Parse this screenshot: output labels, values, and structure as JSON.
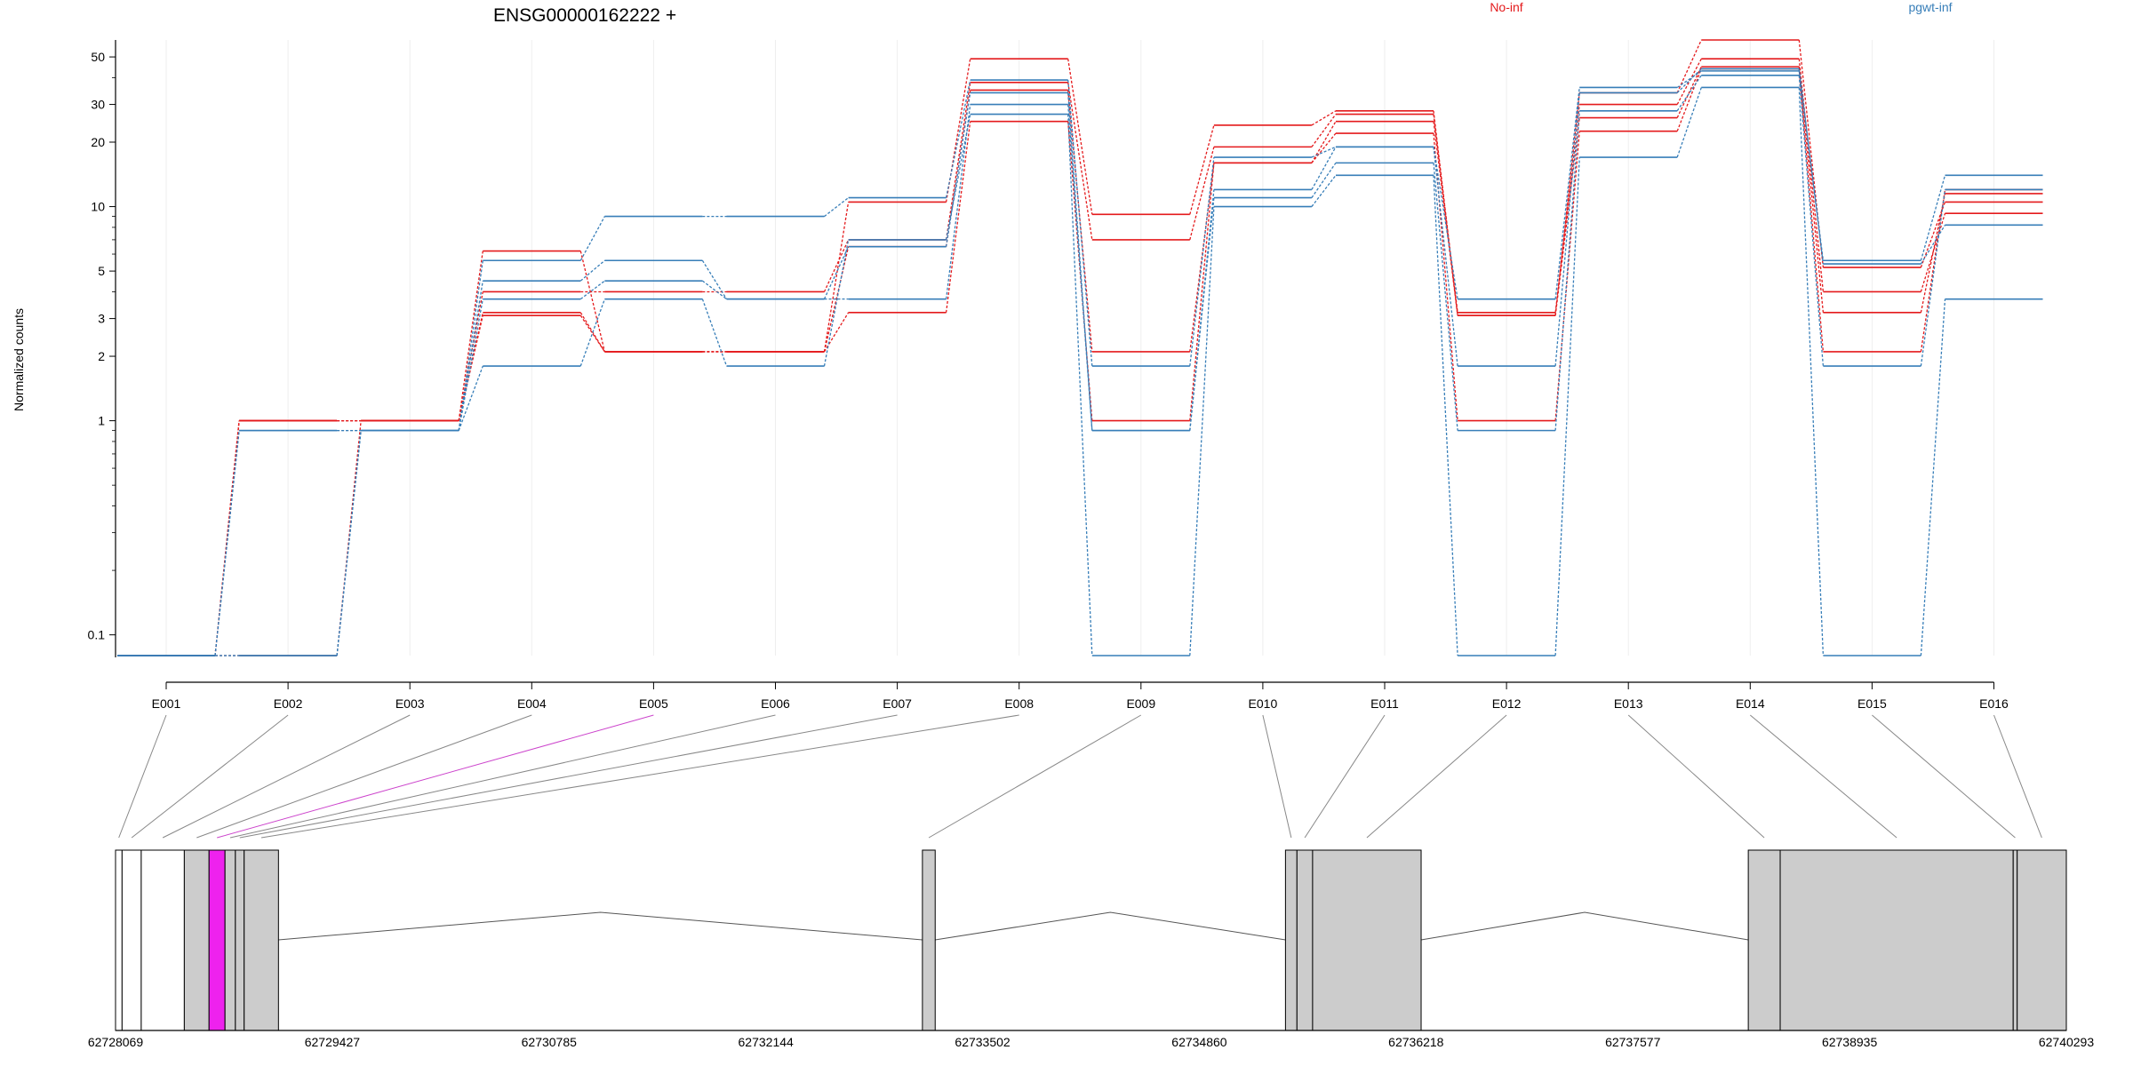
{
  "chart_data": {
    "type": "line",
    "title": "ENSG00000162222 +",
    "ylabel": "Normalized counts",
    "xlabel": "",
    "yscale": "log",
    "ylim": [
      0.08,
      60
    ],
    "grid": "vertical-light",
    "yticks": [
      {
        "value": 0.1,
        "label": "0.1"
      },
      {
        "value": 1,
        "label": "1"
      },
      {
        "value": 2,
        "label": "2"
      },
      {
        "value": 3,
        "label": "3"
      },
      {
        "value": 5,
        "label": "5"
      },
      {
        "value": 10,
        "label": "10"
      },
      {
        "value": 20,
        "label": "20"
      },
      {
        "value": 30,
        "label": "30"
      },
      {
        "value": 50,
        "label": "50"
      }
    ],
    "categories": [
      "E001",
      "E002",
      "E003",
      "E004",
      "E005",
      "E006",
      "E007",
      "E008",
      "E009",
      "E010",
      "E011",
      "E012",
      "E013",
      "E014",
      "E015",
      "E016"
    ],
    "highlight_exon": "E005",
    "legend": [
      {
        "name": "No-inf",
        "color": "#e41a1c"
      },
      {
        "name": "pgwt-inf",
        "color": "#377eb8"
      }
    ],
    "series": [
      {
        "group": "No-inf",
        "color": "#e41a1c",
        "values": [
          0.08,
          1.0,
          1.0,
          6.2,
          2.1,
          2.1,
          10.5,
          49,
          9.2,
          24,
          28,
          3.1,
          34,
          60,
          5.2,
          10.5
        ]
      },
      {
        "group": "No-inf",
        "color": "#e41a1c",
        "values": [
          0.08,
          1.0,
          1.0,
          4.0,
          4.0,
          4.0,
          7.0,
          38,
          7.0,
          19,
          27,
          3.2,
          30,
          49,
          4.0,
          9.3
        ]
      },
      {
        "group": "No-inf",
        "color": "#e41a1c",
        "values": [
          0.08,
          1.0,
          1.0,
          3.2,
          2.1,
          2.1,
          6.5,
          35,
          2.1,
          16,
          25,
          3.1,
          26,
          45,
          3.2,
          11.5
        ]
      },
      {
        "group": "No-inf",
        "color": "#e41a1c",
        "values": [
          0.08,
          0.08,
          1.0,
          3.1,
          2.1,
          2.1,
          3.2,
          25,
          1.0,
          16,
          22,
          1.0,
          22.5,
          44,
          2.1,
          12
        ]
      },
      {
        "group": "pgwt-inf",
        "color": "#377eb8",
        "values": [
          0.08,
          0.9,
          0.9,
          5.6,
          9.0,
          9.0,
          11,
          39,
          1.8,
          17,
          19,
          3.7,
          36,
          43,
          5.6,
          14
        ]
      },
      {
        "group": "pgwt-inf",
        "color": "#377eb8",
        "values": [
          0.08,
          0.08,
          0.9,
          4.5,
          5.6,
          3.7,
          6.5,
          34,
          0.9,
          12,
          19,
          1.8,
          34,
          44,
          5.4,
          8.2
        ]
      },
      {
        "group": "pgwt-inf",
        "color": "#377eb8",
        "values": [
          0.08,
          0.08,
          0.9,
          3.7,
          4.5,
          3.7,
          3.7,
          30,
          0.9,
          11,
          16,
          0.9,
          28,
          41,
          1.8,
          12
        ]
      },
      {
        "group": "pgwt-inf",
        "color": "#377eb8",
        "values": [
          0.08,
          0.9,
          0.9,
          1.8,
          3.7,
          1.8,
          7.0,
          27,
          0.08,
          10,
          14,
          0.08,
          17,
          36,
          0.08,
          3.7
        ]
      }
    ],
    "gene_model": {
      "axis_ticks": [
        "62728069",
        "62729427",
        "62730785",
        "62732144",
        "62733502",
        "62734860",
        "62736218",
        "62737577",
        "62738935",
        "62740293"
      ],
      "range": [
        62728069,
        62740293
      ],
      "exons": [
        {
          "id": "E001",
          "start": 62728069,
          "end": 62728110,
          "fill": "#ffffff"
        },
        {
          "id": "E002",
          "start": 62728110,
          "end": 62728230,
          "fill": "#ffffff"
        },
        {
          "id": "E003",
          "start": 62728230,
          "end": 62728500,
          "fill": "#ffffff"
        },
        {
          "id": "E004",
          "start": 62728500,
          "end": 62728655,
          "fill": "#cccccc"
        },
        {
          "id": "E005",
          "start": 62728655,
          "end": 62728755,
          "fill": "#ee22ee"
        },
        {
          "id": "E006",
          "start": 62728755,
          "end": 62728820,
          "fill": "#cccccc"
        },
        {
          "id": "E007",
          "start": 62728820,
          "end": 62728875,
          "fill": "#cccccc"
        },
        {
          "id": "E008",
          "start": 62728875,
          "end": 62729090,
          "fill": "#cccccc"
        },
        {
          "id": "E009",
          "start": 62733125,
          "end": 62733205,
          "fill": "#cccccc"
        },
        {
          "id": "E010",
          "start": 62735400,
          "end": 62735472,
          "fill": "#cccccc"
        },
        {
          "id": "E011",
          "start": 62735472,
          "end": 62735570,
          "fill": "#cccccc"
        },
        {
          "id": "E012",
          "start": 62735570,
          "end": 62736250,
          "fill": "#cccccc"
        },
        {
          "id": "E013",
          "start": 62738300,
          "end": 62738500,
          "fill": "#cccccc"
        },
        {
          "id": "E014",
          "start": 62738500,
          "end": 62739960,
          "fill": "#cccccc"
        },
        {
          "id": "E015",
          "start": 62739960,
          "end": 62739985,
          "fill": "#cccccc"
        },
        {
          "id": "E016",
          "start": 62739985,
          "end": 62740293,
          "fill": "#cccccc"
        }
      ]
    }
  }
}
